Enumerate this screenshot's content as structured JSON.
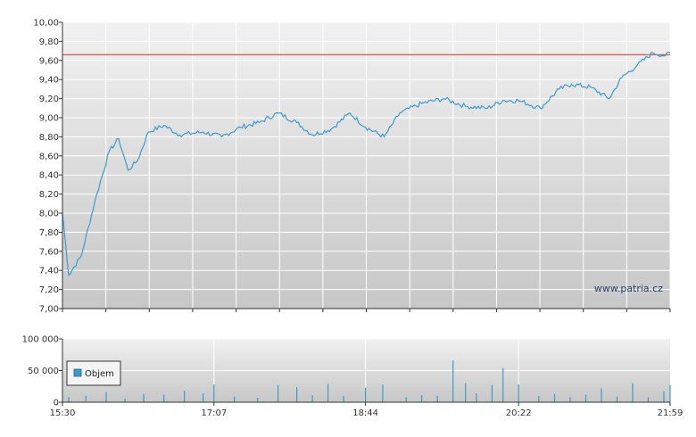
{
  "chart_data": [
    {
      "type": "line",
      "title": "",
      "xlabel": "",
      "ylabel": "",
      "ylim": [
        7.0,
        10.0
      ],
      "y_ticks": [
        "10,00",
        "9,80",
        "9,60",
        "9,40",
        "9,20",
        "9,00",
        "8,80",
        "8,60",
        "8,40",
        "8,20",
        "8,00",
        "7,80",
        "7,60",
        "7,40",
        "7,20",
        "7,00"
      ],
      "reference_line": {
        "value": 9.66,
        "color": "#e03030"
      },
      "watermark": "www.patria.cz",
      "colors": {
        "line": "#3a9ccc"
      },
      "grid": true,
      "series": [
        {
          "x": [
            "15:30",
            "15:34",
            "15:42",
            "15:52",
            "16:00",
            "16:06",
            "16:12",
            "16:18",
            "16:25",
            "16:35",
            "16:45",
            "17:00",
            "17:12",
            "17:24",
            "17:36",
            "17:48",
            "18:00",
            "18:10",
            "18:22",
            "18:34",
            "18:44",
            "18:56",
            "19:06",
            "19:20",
            "19:34",
            "19:48",
            "20:02",
            "20:12",
            "20:22",
            "20:36",
            "20:48",
            "20:56",
            "21:08",
            "21:20",
            "21:28",
            "21:38",
            "21:48",
            "21:56",
            "21:59"
          ],
          "values": [
            8.0,
            7.35,
            7.55,
            8.2,
            8.65,
            8.78,
            8.45,
            8.55,
            8.85,
            8.92,
            8.82,
            8.85,
            8.8,
            8.9,
            8.95,
            9.05,
            8.95,
            8.82,
            8.88,
            9.05,
            8.9,
            8.8,
            9.05,
            9.15,
            9.2,
            9.12,
            9.1,
            9.18,
            9.18,
            9.1,
            9.3,
            9.35,
            9.32,
            9.2,
            9.42,
            9.55,
            9.68,
            9.65,
            9.68
          ]
        }
      ]
    },
    {
      "type": "bar",
      "title": "",
      "xlabel": "",
      "ylabel": "",
      "ylim": [
        0,
        100000
      ],
      "y_ticks": [
        "100 000",
        "50 000",
        "0"
      ],
      "x_ticks": [
        "15:30",
        "17:07",
        "18:44",
        "20:22",
        "21:59"
      ],
      "legend": {
        "label": "Objem",
        "placement": "left"
      },
      "colors": {
        "bar": "#3a9ccc"
      },
      "series": [
        {
          "name": "Objem",
          "x": [
            "15:34",
            "15:45",
            "15:58",
            "16:10",
            "16:22",
            "16:35",
            "16:48",
            "17:00",
            "17:07",
            "17:20",
            "17:35",
            "17:48",
            "18:00",
            "18:10",
            "18:20",
            "18:30",
            "18:44",
            "18:55",
            "19:10",
            "19:20",
            "19:30",
            "19:40",
            "19:48",
            "19:55",
            "20:05",
            "20:12",
            "20:22",
            "20:35",
            "20:45",
            "20:55",
            "21:05",
            "21:15",
            "21:25",
            "21:35",
            "21:45",
            "21:55",
            "21:59"
          ],
          "values": [
            8000,
            10000,
            16000,
            6000,
            13000,
            12000,
            18000,
            14000,
            28000,
            9000,
            7000,
            27000,
            24000,
            11000,
            29000,
            10000,
            23000,
            28000,
            8000,
            11000,
            10000,
            66000,
            30000,
            14000,
            27000,
            54000,
            28000,
            10000,
            13000,
            8000,
            12000,
            22000,
            9000,
            30000,
            8000,
            17000,
            27000
          ]
        }
      ]
    }
  ]
}
